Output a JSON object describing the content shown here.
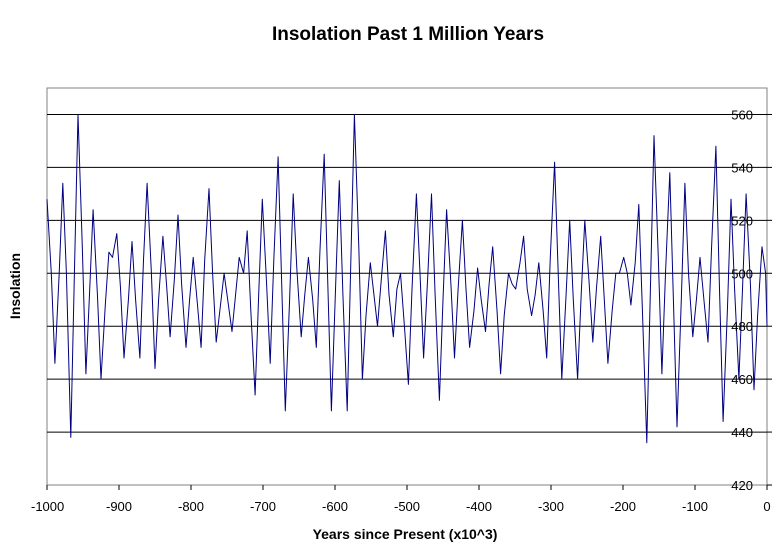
{
  "chart_data": {
    "type": "line",
    "title": "Insolation Past 1 Million Years",
    "xlabel": "Years since Present (x10^3)",
    "ylabel": "Insolation",
    "xlim": [
      -1000,
      0
    ],
    "ylim": [
      420,
      570
    ],
    "x_ticks": [
      -1000,
      -900,
      -800,
      -700,
      -600,
      -500,
      -400,
      -300,
      -200,
      -100,
      0
    ],
    "x_tick_labels": [
      "-1000",
      "-900",
      "-800",
      "-700",
      "-600",
      "-500",
      "-400",
      "-300",
      "-200",
      "-100",
      "0"
    ],
    "y_ticks": [
      420,
      440,
      460,
      480,
      500,
      520,
      540,
      560
    ],
    "y_tick_labels": [
      "420",
      "440",
      "460",
      "480",
      "500",
      "520",
      "540",
      "560"
    ],
    "grid": "horizontal",
    "legend": "none",
    "colors": {
      "line": "#000080",
      "grid": "#000000",
      "frame": "#808080",
      "background": "#ffffff"
    },
    "series": [
      {
        "name": "Insolation",
        "points": [
          [
            -1000,
            528
          ],
          [
            -994,
            500
          ],
          [
            -989,
            466
          ],
          [
            -983,
            500
          ],
          [
            -978,
            534
          ],
          [
            -973,
            500
          ],
          [
            -967,
            438
          ],
          [
            -962,
            500
          ],
          [
            -957,
            560
          ],
          [
            -951,
            510
          ],
          [
            -946,
            462
          ],
          [
            -941,
            492
          ],
          [
            -936,
            524
          ],
          [
            -930,
            492
          ],
          [
            -925,
            460
          ],
          [
            -919,
            488
          ],
          [
            -914,
            508
          ],
          [
            -909,
            506
          ],
          [
            -903,
            515
          ],
          [
            -898,
            495
          ],
          [
            -893,
            468
          ],
          [
            -887,
            490
          ],
          [
            -882,
            512
          ],
          [
            -877,
            490
          ],
          [
            -871,
            468
          ],
          [
            -866,
            505
          ],
          [
            -861,
            534
          ],
          [
            -855,
            500
          ],
          [
            -850,
            464
          ],
          [
            -845,
            490
          ],
          [
            -839,
            514
          ],
          [
            -834,
            496
          ],
          [
            -829,
            476
          ],
          [
            -823,
            498
          ],
          [
            -818,
            522
          ],
          [
            -813,
            496
          ],
          [
            -807,
            472
          ],
          [
            -802,
            490
          ],
          [
            -797,
            506
          ],
          [
            -791,
            488
          ],
          [
            -786,
            472
          ],
          [
            -781,
            505
          ],
          [
            -775,
            532
          ],
          [
            -770,
            500
          ],
          [
            -765,
            474
          ],
          [
            -759,
            488
          ],
          [
            -754,
            500
          ],
          [
            -749,
            490
          ],
          [
            -743,
            478
          ],
          [
            -738,
            492
          ],
          [
            -733,
            506
          ],
          [
            -727,
            500
          ],
          [
            -722,
            516
          ],
          [
            -717,
            486
          ],
          [
            -711,
            454
          ],
          [
            -706,
            492
          ],
          [
            -701,
            528
          ],
          [
            -695,
            496
          ],
          [
            -690,
            466
          ],
          [
            -685,
            505
          ],
          [
            -679,
            544
          ],
          [
            -674,
            496
          ],
          [
            -669,
            448
          ],
          [
            -663,
            490
          ],
          [
            -658,
            530
          ],
          [
            -653,
            502
          ],
          [
            -647,
            476
          ],
          [
            -642,
            492
          ],
          [
            -637,
            506
          ],
          [
            -631,
            490
          ],
          [
            -626,
            472
          ],
          [
            -621,
            508
          ],
          [
            -615,
            545
          ],
          [
            -610,
            496
          ],
          [
            -605,
            448
          ],
          [
            -599,
            496
          ],
          [
            -594,
            535
          ],
          [
            -589,
            492
          ],
          [
            -583,
            448
          ],
          [
            -578,
            504
          ],
          [
            -573,
            560
          ],
          [
            -567,
            510
          ],
          [
            -562,
            460
          ],
          [
            -557,
            484
          ],
          [
            -551,
            504
          ],
          [
            -546,
            492
          ],
          [
            -541,
            480
          ],
          [
            -535,
            500
          ],
          [
            -530,
            516
          ],
          [
            -525,
            492
          ],
          [
            -519,
            476
          ],
          [
            -514,
            494
          ],
          [
            -509,
            500
          ],
          [
            -503,
            478
          ],
          [
            -498,
            458
          ],
          [
            -493,
            494
          ],
          [
            -487,
            530
          ],
          [
            -482,
            500
          ],
          [
            -477,
            468
          ],
          [
            -471,
            500
          ],
          [
            -466,
            530
          ],
          [
            -461,
            492
          ],
          [
            -455,
            452
          ],
          [
            -450,
            490
          ],
          [
            -445,
            524
          ],
          [
            -439,
            496
          ],
          [
            -434,
            468
          ],
          [
            -429,
            494
          ],
          [
            -423,
            520
          ],
          [
            -418,
            494
          ],
          [
            -413,
            472
          ],
          [
            -407,
            486
          ],
          [
            -402,
            502
          ],
          [
            -397,
            490
          ],
          [
            -391,
            478
          ],
          [
            -386,
            496
          ],
          [
            -381,
            510
          ],
          [
            -375,
            486
          ],
          [
            -370,
            462
          ],
          [
            -365,
            484
          ],
          [
            -359,
            500
          ],
          [
            -354,
            496
          ],
          [
            -349,
            494
          ],
          [
            -343,
            504
          ],
          [
            -338,
            514
          ],
          [
            -333,
            494
          ],
          [
            -327,
            484
          ],
          [
            -322,
            492
          ],
          [
            -317,
            504
          ],
          [
            -311,
            486
          ],
          [
            -306,
            468
          ],
          [
            -301,
            506
          ],
          [
            -295,
            542
          ],
          [
            -290,
            500
          ],
          [
            -285,
            460
          ],
          [
            -279,
            492
          ],
          [
            -274,
            520
          ],
          [
            -269,
            490
          ],
          [
            -263,
            460
          ],
          [
            -258,
            492
          ],
          [
            -253,
            520
          ],
          [
            -247,
            496
          ],
          [
            -242,
            474
          ],
          [
            -237,
            494
          ],
          [
            -231,
            514
          ],
          [
            -226,
            490
          ],
          [
            -221,
            466
          ],
          [
            -215,
            486
          ],
          [
            -210,
            500
          ],
          [
            -205,
            500
          ],
          [
            -199,
            506
          ],
          [
            -194,
            500
          ],
          [
            -189,
            488
          ],
          [
            -183,
            504
          ],
          [
            -178,
            526
          ],
          [
            -173,
            486
          ],
          [
            -167,
            436
          ],
          [
            -162,
            494
          ],
          [
            -157,
            552
          ],
          [
            -151,
            506
          ],
          [
            -146,
            462
          ],
          [
            -141,
            500
          ],
          [
            -135,
            538
          ],
          [
            -130,
            490
          ],
          [
            -125,
            442
          ],
          [
            -119,
            490
          ],
          [
            -114,
            534
          ],
          [
            -109,
            500
          ],
          [
            -103,
            476
          ],
          [
            -98,
            490
          ],
          [
            -93,
            506
          ],
          [
            -87,
            488
          ],
          [
            -82,
            474
          ],
          [
            -77,
            510
          ],
          [
            -71,
            548
          ],
          [
            -66,
            494
          ],
          [
            -61,
            444
          ],
          [
            -55,
            486
          ],
          [
            -50,
            528
          ],
          [
            -45,
            494
          ],
          [
            -39,
            460
          ],
          [
            -34,
            494
          ],
          [
            -29,
            530
          ],
          [
            -23,
            496
          ],
          [
            -18,
            456
          ],
          [
            -13,
            484
          ],
          [
            -7,
            510
          ],
          [
            -2,
            500
          ],
          [
            0,
            480
          ]
        ]
      }
    ]
  }
}
